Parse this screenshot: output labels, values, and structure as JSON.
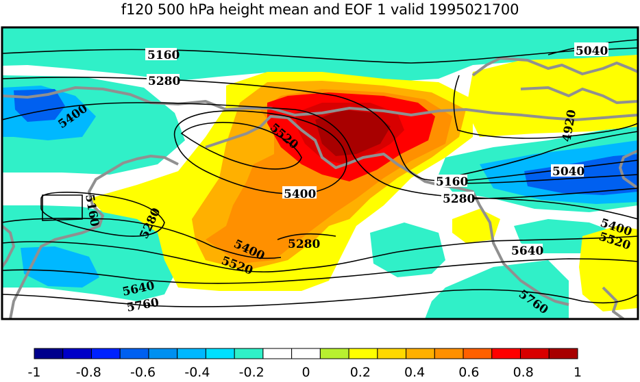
{
  "title": "f120 500 hPa height mean and EOF 1 valid 1995021700",
  "contour_labels": [
    "5160",
    "5040",
    "5280",
    "5400",
    "5520",
    "4920",
    "5040",
    "5400",
    "5160",
    "5280",
    "5280",
    "5400",
    "5520",
    "5280",
    "5400",
    "5520",
    "5640",
    "5640",
    "5760",
    "5760",
    "5160"
  ],
  "colorbar": {
    "tick_labels": [
      "-1",
      "-0.8",
      "-0.6",
      "-0.4",
      "-0.2",
      "0",
      "0.2",
      "0.4",
      "0.6",
      "0.8",
      "1"
    ],
    "colors": [
      "#00008c",
      "#0000c8",
      "#0022ff",
      "#0060f0",
      "#0090f0",
      "#00b8ff",
      "#00e0ff",
      "#30f0c8",
      "#ffffff",
      "#ffffff",
      "#b8f030",
      "#ffff00",
      "#ffd800",
      "#ffb000",
      "#ff9000",
      "#ff6000",
      "#ff0000",
      "#d80000",
      "#a80000"
    ]
  },
  "colors": {
    "coast": "#909090",
    "contour": "#000000"
  }
}
